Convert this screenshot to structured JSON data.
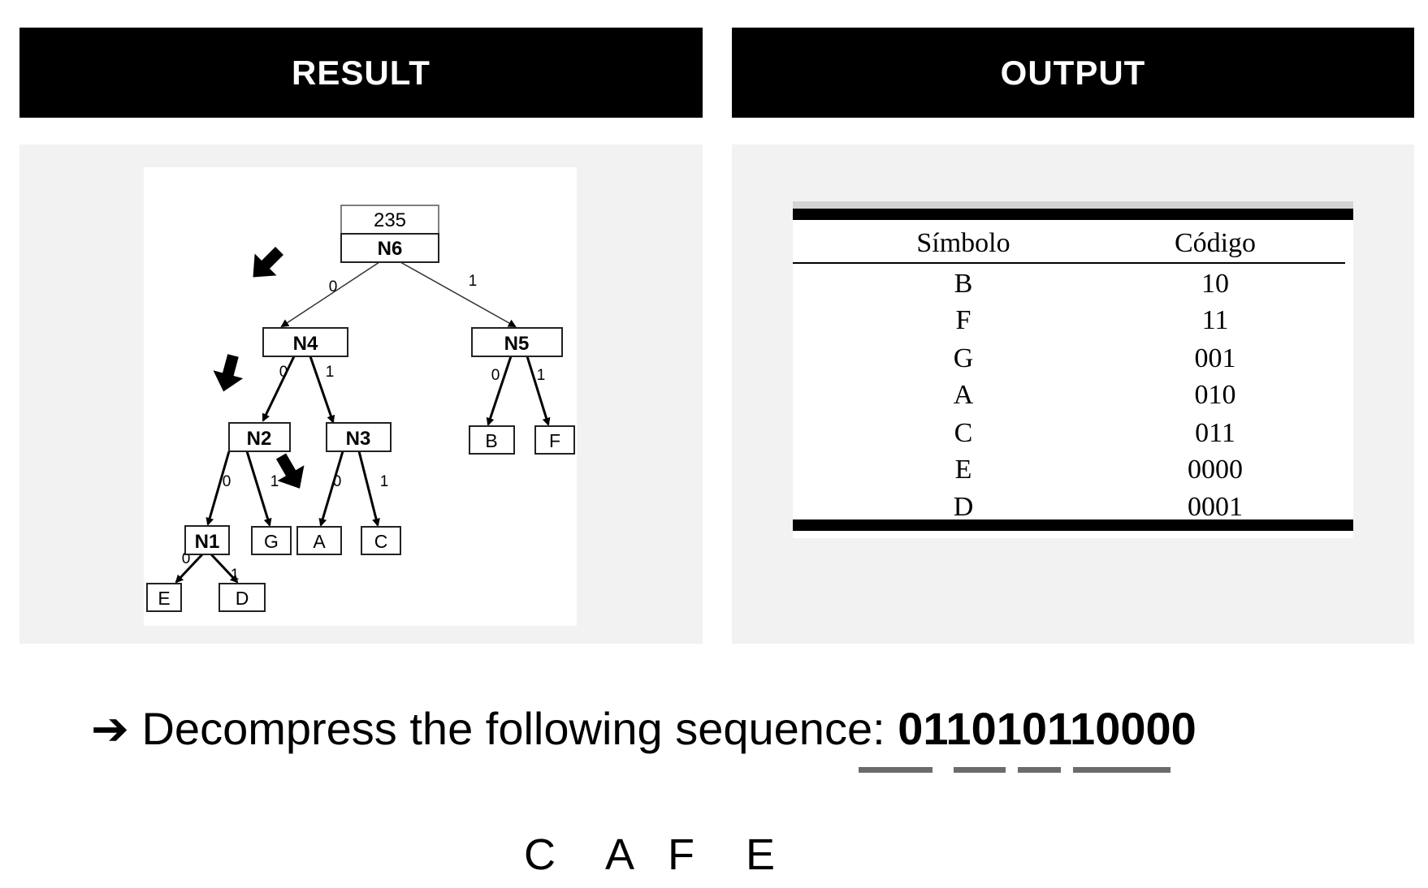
{
  "headers": {
    "left": "RESULT",
    "right": "OUTPUT"
  },
  "tree": {
    "root": {
      "value": "235",
      "label": "N6"
    },
    "internal": [
      "N4",
      "N5",
      "N2",
      "N3",
      "N1"
    ],
    "leaves": [
      "B",
      "F",
      "G",
      "A",
      "C",
      "E",
      "D"
    ],
    "edge_zero": "0",
    "edge_one": "1"
  },
  "table": {
    "headers": [
      "Símbolo",
      "Código"
    ],
    "rows": [
      {
        "symbol": "B",
        "code": "10"
      },
      {
        "symbol": "F",
        "code": "11"
      },
      {
        "symbol": "G",
        "code": "001"
      },
      {
        "symbol": "A",
        "code": "010"
      },
      {
        "symbol": "C",
        "code": "011"
      },
      {
        "symbol": "E",
        "code": "0000"
      },
      {
        "symbol": "D",
        "code": "0001"
      }
    ]
  },
  "question": {
    "arrow": "➔",
    "prompt": "Decompress the following sequence:",
    "sequence": "011010110000"
  },
  "answer": [
    "C",
    "A",
    "F",
    "E"
  ]
}
